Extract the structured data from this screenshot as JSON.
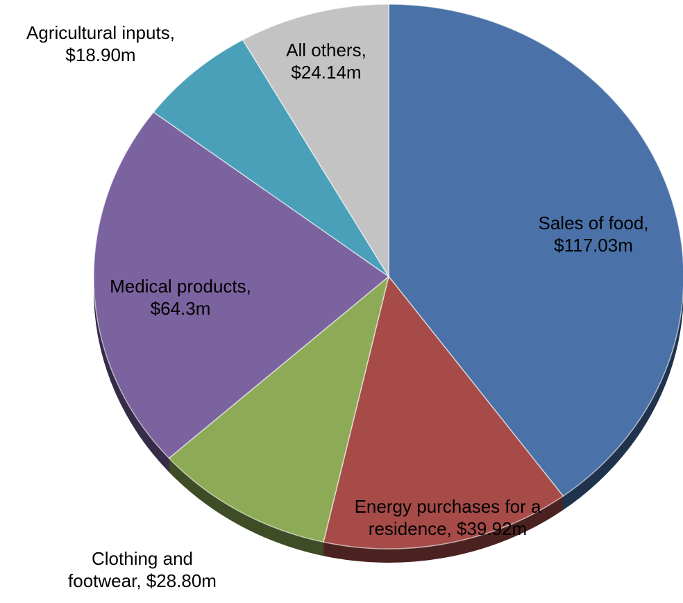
{
  "chart_data": {
    "type": "pie",
    "categories": [
      "Sales of food,",
      "Energy purchases for a residence,",
      "Clothing and footwear,",
      "Medical products,",
      "Agricultural inputs,",
      "All others,"
    ],
    "values": [
      117.03,
      39.92,
      28.8,
      64.3,
      18.9,
      24.14
    ],
    "value_labels": [
      "$117.03m",
      "$39.92m",
      "$28.80m",
      "$64.3m",
      "$18.90m",
      "$24.14m"
    ],
    "colors": [
      "#4a72a8",
      "#a64b48",
      "#8dab56",
      "#7b63a0",
      "#4aa0b8",
      "#c3c3c3"
    ]
  }
}
